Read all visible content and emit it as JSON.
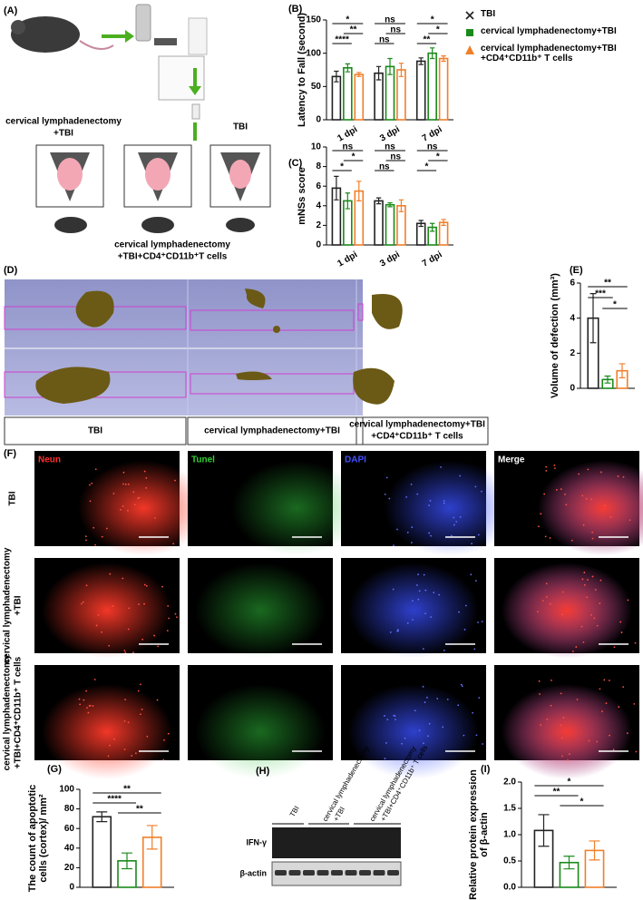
{
  "chart_data": [
    {
      "type": "bar",
      "panel": "(B)",
      "ylabel": [
        "Latency to Fall (second)"
      ],
      "categories": [
        "1 dpi",
        "3 dpi",
        "7 dpi"
      ],
      "series": [
        {
          "name": "TBI",
          "color": "#222222",
          "values": [
            65,
            70,
            88
          ],
          "errors": [
            8,
            10,
            5
          ]
        },
        {
          "name": "cervical lymphadenectomy+TBI",
          "color": "#1a8a1a",
          "values": [
            78,
            80,
            100
          ],
          "errors": [
            6,
            12,
            8
          ]
        },
        {
          "name": "cervical lymphadenectomy+TBI +CD4⁺CD11b⁺ T cells",
          "color": "#f07f2a",
          "values": [
            68,
            75,
            92
          ],
          "errors": [
            3,
            10,
            4
          ]
        }
      ],
      "ylim": [
        0,
        150
      ],
      "yticks": [
        0,
        50,
        100,
        150
      ],
      "annotations": [
        "*",
        "****",
        "**",
        "ns",
        "ns",
        "ns",
        "*",
        "**",
        "*"
      ]
    },
    {
      "type": "bar",
      "panel": "(C)",
      "ylabel": [
        "mNSs score"
      ],
      "categories": [
        "1 dpi",
        "3 dpi",
        "7 dpi"
      ],
      "series": [
        {
          "color": "#222222",
          "values": [
            5.8,
            4.5,
            2.2
          ],
          "errors": [
            1.2,
            0.3,
            0.3
          ]
        },
        {
          "color": "#1a8a1a",
          "values": [
            4.5,
            4.1,
            1.8
          ],
          "errors": [
            0.8,
            0.2,
            0.4
          ]
        },
        {
          "color": "#f07f2a",
          "values": [
            5.5,
            4.0,
            2.3
          ],
          "errors": [
            1.0,
            0.6,
            0.3
          ]
        }
      ],
      "ylim": [
        0,
        10
      ],
      "yticks": [
        0,
        2,
        4,
        6,
        8,
        10
      ],
      "annotations": [
        "ns",
        "*",
        "*",
        "ns",
        "ns",
        "ns",
        "ns",
        "*",
        "*"
      ]
    },
    {
      "type": "bar",
      "panel": "(E)",
      "ylabel": [
        "Volume of  defection (mm³)"
      ],
      "series": [
        {
          "color": "#222222",
          "values": [
            4.0
          ],
          "errors": [
            1.4
          ]
        },
        {
          "color": "#1a8a1a",
          "values": [
            0.5
          ],
          "errors": [
            0.2
          ]
        },
        {
          "color": "#f07f2a",
          "values": [
            1.0
          ],
          "errors": [
            0.4
          ]
        }
      ],
      "ylim": [
        0,
        6
      ],
      "yticks": [
        0,
        2,
        4,
        6
      ],
      "annotations": [
        "**",
        "***",
        "*"
      ]
    },
    {
      "type": "bar",
      "panel": "(G)",
      "ylabel": [
        "The count of apoptotic",
        "cells (cortex)/ mm²"
      ],
      "series": [
        {
          "color": "#222222",
          "values": [
            72
          ],
          "errors": [
            5
          ]
        },
        {
          "color": "#1a8a1a",
          "values": [
            27
          ],
          "errors": [
            8
          ]
        },
        {
          "color": "#f07f2a",
          "values": [
            51
          ],
          "errors": [
            12
          ]
        }
      ],
      "ylim": [
        0,
        100
      ],
      "yticks": [
        0,
        20,
        40,
        60,
        80,
        100
      ],
      "annotations": [
        "**",
        "****",
        "**"
      ]
    },
    {
      "type": "bar",
      "panel": "(I)",
      "ylabel": [
        "Relative protein expression",
        "of β-actin"
      ],
      "series": [
        {
          "color": "#222222",
          "values": [
            1.08
          ],
          "errors": [
            0.3
          ]
        },
        {
          "color": "#1a8a1a",
          "values": [
            0.47
          ],
          "errors": [
            0.12
          ]
        },
        {
          "color": "#f07f2a",
          "values": [
            0.7
          ],
          "errors": [
            0.18
          ]
        }
      ],
      "ylim": [
        0,
        2
      ],
      "yticks": [
        {
          "value": 0,
          "label": "0.0"
        },
        0.5,
        {
          "value": 1,
          "label": "1.0"
        },
        1.5,
        {
          "value": 2,
          "label": "2.0"
        }
      ],
      "annotations": [
        "*",
        "**",
        "*"
      ]
    }
  ],
  "panel_a": {
    "label": "(A)",
    "groups": [
      [
        "cervical lymphadenectomy",
        "+TBI"
      ],
      [
        "TBI"
      ],
      [
        "cervical lymphadenectomy",
        "+TBI+CD4⁺CD11b⁺T cells"
      ]
    ]
  },
  "panel_d": {
    "label": "(D)",
    "groups": [
      [
        "TBI"
      ],
      [
        "cervical lymphadenectomy+TBI"
      ],
      [
        "cervical lymphadenectomy+TBI",
        "+CD4⁺CD11b⁺ T cells"
      ]
    ]
  },
  "panel_f": {
    "label": "(F)",
    "stains": [
      "Neun",
      "Tunel",
      "DAPI",
      "Merge"
    ],
    "groups": [
      [
        "TBI"
      ],
      [
        "cervical lymphadenectomy",
        "+TBI"
      ],
      [
        "cervical lymphadenectomy",
        "+TBI+CD4⁺CD11b⁺ T cells"
      ]
    ]
  },
  "panel_h": {
    "label": "(H)",
    "groups": [
      [
        "TBI"
      ],
      [
        "cervical lymphadenectomy",
        "+TBI"
      ],
      [
        "cervical lymphadenectomy",
        "+TBI+CD4⁺CD11b⁺ T cells"
      ]
    ],
    "proteins": [
      "IFN-γ",
      "β-actin"
    ]
  }
}
